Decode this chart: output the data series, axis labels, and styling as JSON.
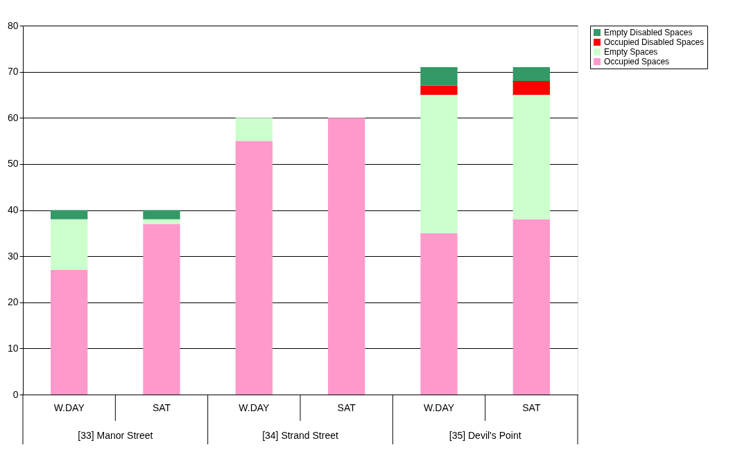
{
  "chart_data": {
    "type": "bar",
    "stacked": true,
    "categories": [
      "W.DAY",
      "SAT",
      "W.DAY",
      "SAT",
      "W.DAY",
      "SAT"
    ],
    "annotations": [
      "[33] Manor Street",
      "[34] Strand Street",
      "[35] Devil's Point"
    ],
    "series": [
      {
        "name": "Occupied Spaces",
        "color": "#ff99cc",
        "values": [
          27,
          37,
          55,
          60,
          35,
          38
        ]
      },
      {
        "name": "Empty Spaces",
        "color": "#ccffcc",
        "values": [
          11,
          1,
          5,
          0,
          30,
          27
        ]
      },
      {
        "name": "Occupied Disabled Spaces",
        "color": "#ff0000",
        "values": [
          0,
          0,
          0,
          0,
          2,
          3
        ]
      },
      {
        "name": "Empty Disabled Spaces",
        "color": "#339966",
        "values": [
          2,
          2,
          0,
          0,
          4,
          3
        ]
      }
    ],
    "ylim": [
      0,
      80
    ],
    "yticks": [
      0,
      10,
      20,
      30,
      40,
      50,
      60,
      70,
      80
    ],
    "grid": "y",
    "legend": "right"
  }
}
